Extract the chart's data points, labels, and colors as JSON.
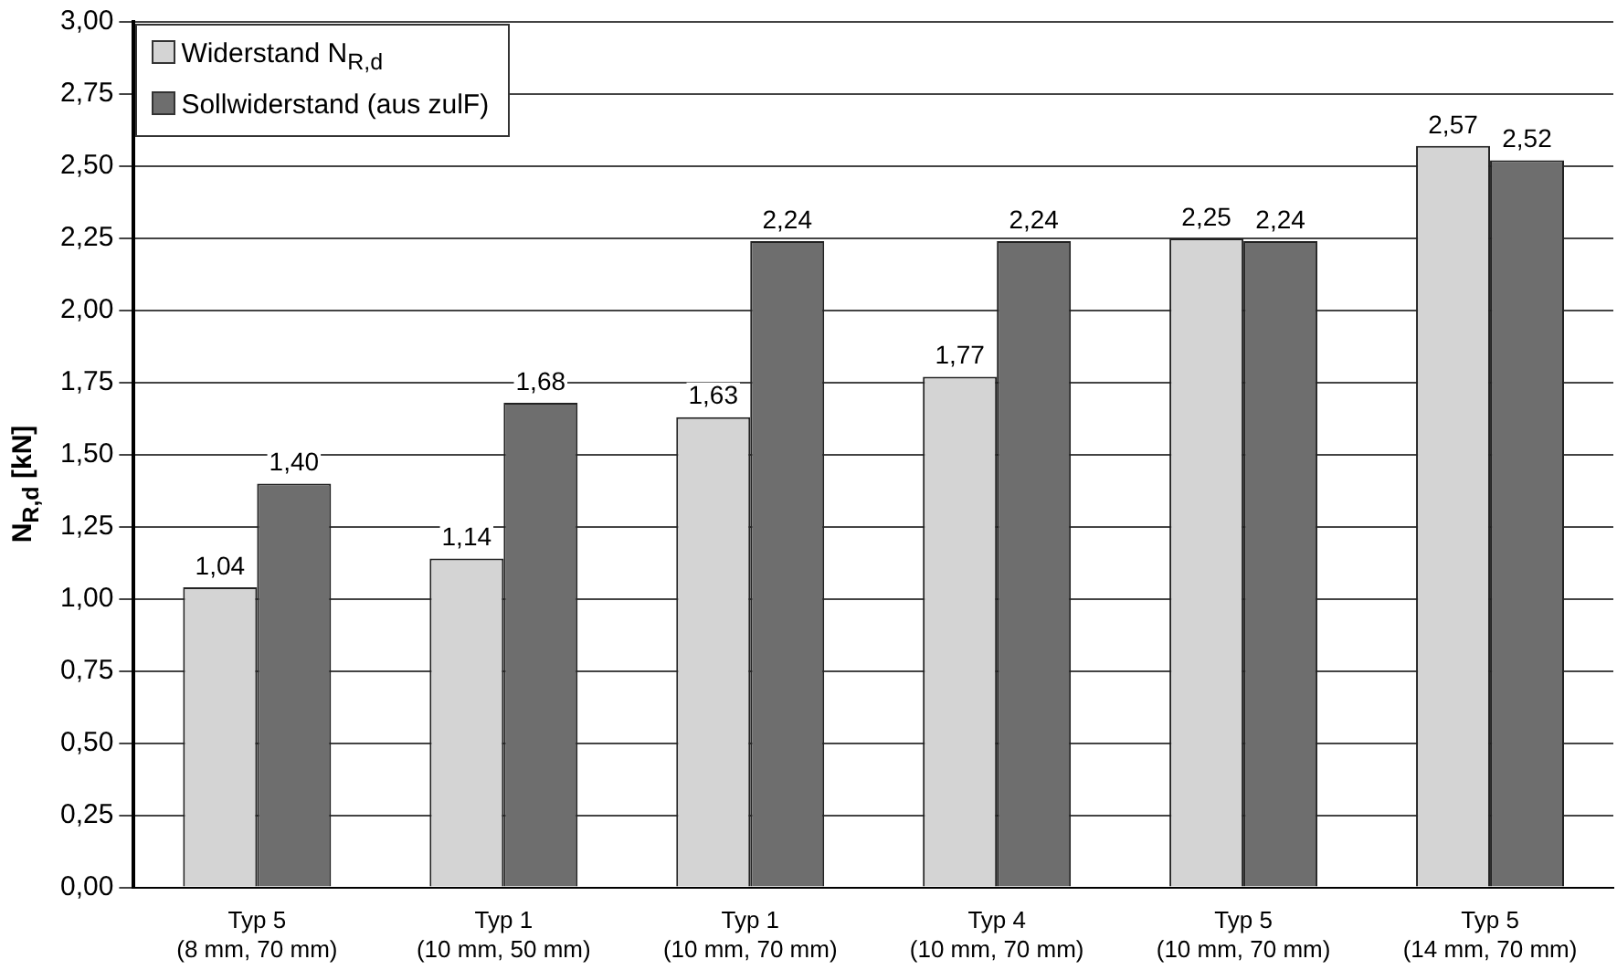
{
  "chart_data": {
    "type": "bar",
    "ylabel": "N$_{R,d}$ [kN]",
    "categories": [
      "Typ 5\n(8 mm, 70 mm)",
      "Typ 1\n(10 mm, 50 mm)",
      "Typ 1\n(10 mm, 70 mm)",
      "Typ 4\n(10 mm, 70 mm)",
      "Typ 5\n(10 mm, 70 mm)",
      "Typ 5\n(14 mm, 70 mm)"
    ],
    "series": [
      {
        "name": "Widerstand N$_{R,d}$",
        "color": "#d4d4d4",
        "values": [
          1.04,
          1.14,
          1.63,
          1.77,
          2.25,
          2.57
        ]
      },
      {
        "name": "Sollwiderstand (aus zulF)",
        "color": "#6e6e6e",
        "values": [
          1.4,
          1.68,
          2.24,
          2.24,
          2.24,
          2.52
        ]
      }
    ],
    "ylim": [
      0,
      3
    ],
    "yticks": [
      {
        "value": 0,
        "label": "0,00"
      },
      {
        "value": 0.25,
        "label": "0,25"
      },
      {
        "value": 0.5,
        "label": "0,50"
      },
      {
        "value": 0.75,
        "label": "0,75"
      },
      {
        "value": 1,
        "label": "1,00"
      },
      {
        "value": 1.25,
        "label": "1,25"
      },
      {
        "value": 1.5,
        "label": "1,50"
      },
      {
        "value": 1.75,
        "label": "1,75"
      },
      {
        "value": 2,
        "label": "2,00"
      },
      {
        "value": 2.25,
        "label": "2,25"
      },
      {
        "value": 2.5,
        "label": "2,50"
      },
      {
        "value": 2.75,
        "label": "2,75"
      },
      {
        "value": 3,
        "label": "3,00"
      }
    ],
    "value_labels": [
      [
        "1,04",
        "1,14",
        "1,63",
        "1,77",
        "2,25",
        "2,57"
      ],
      [
        "1,40",
        "1,68",
        "2,24",
        "2,24",
        "2,24",
        "2,52"
      ]
    ],
    "grid": "y",
    "legend": "top left"
  }
}
